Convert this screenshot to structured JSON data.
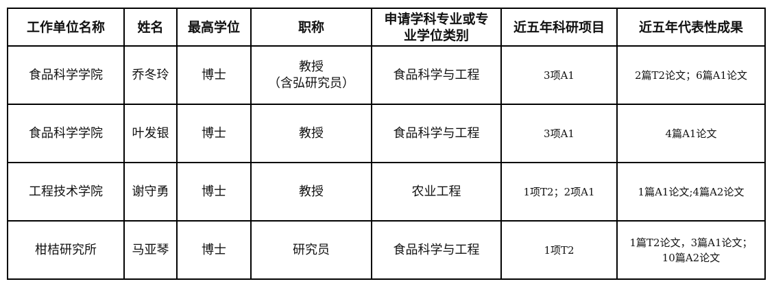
{
  "table": {
    "headers": [
      "工作单位名称",
      "姓名",
      "最高学位",
      "职称",
      "申请学科专业或专业学位类别",
      "近五年科研项目",
      "近五年代表性成果"
    ],
    "rows": [
      {
        "unit": "食品科学学院",
        "name": "乔冬玲",
        "degree": "博士",
        "title": "教授",
        "title_note": "（含弘研究员）",
        "discipline": "食品科学与工程",
        "projects": "3项A1",
        "achievements": "2篇T2论文；6篇A1论文",
        "achievements_line2": ""
      },
      {
        "unit": "食品科学学院",
        "name": "叶发银",
        "degree": "博士",
        "title": "教授",
        "title_note": "",
        "discipline": "食品科学与工程",
        "projects": "3项A1",
        "achievements": "4篇A1论文",
        "achievements_line2": ""
      },
      {
        "unit": "工程技术学院",
        "name": "谢守勇",
        "degree": "博士",
        "title": "教授",
        "title_note": "",
        "discipline": "农业工程",
        "projects": "1项T2；2项A1",
        "achievements": "1篇A1论文;4篇A2论文",
        "achievements_line2": ""
      },
      {
        "unit": "柑桔研究所",
        "name": "马亚琴",
        "degree": "博士",
        "title": "研究员",
        "title_note": "",
        "discipline": "食品科学与工程",
        "projects": "1项T2",
        "achievements": "1篇T2论文，3篇A1论文；",
        "achievements_line2": "10篇A2论文"
      }
    ]
  }
}
